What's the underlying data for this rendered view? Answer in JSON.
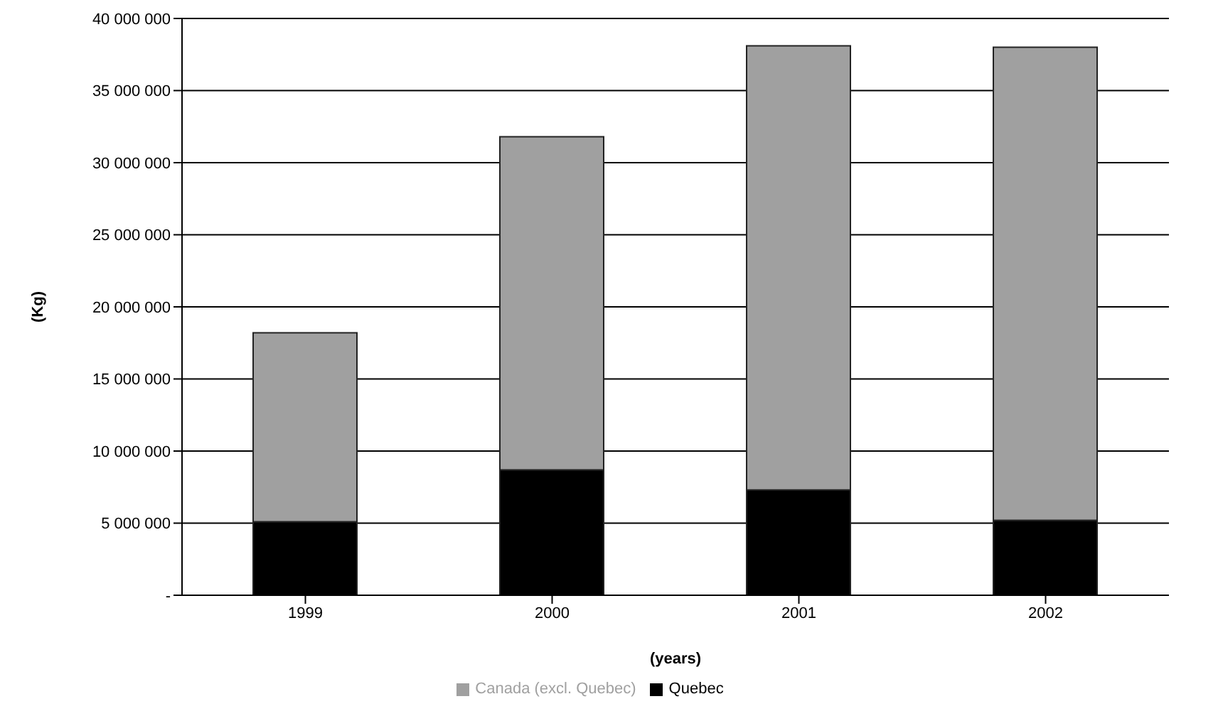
{
  "chart_data": {
    "type": "bar",
    "stacked": true,
    "xlabel": "(years)",
    "ylabel": "(Kg)",
    "categories": [
      "1999",
      "2000",
      "2001",
      "2002"
    ],
    "series": [
      {
        "name": "Quebec",
        "color": "#000000",
        "values": [
          5100000,
          8700000,
          7300000,
          5200000
        ]
      },
      {
        "name": "Canada (excl. Quebec)",
        "color": "#a0a0a0",
        "values": [
          13100000,
          23100000,
          30800000,
          32800000
        ]
      }
    ],
    "ylim": [
      0,
      40000000
    ],
    "yticks": [
      {
        "value": 0,
        "label": "-"
      },
      {
        "value": 5000000,
        "label": "5 000 000"
      },
      {
        "value": 10000000,
        "label": "10 000 000"
      },
      {
        "value": 15000000,
        "label": "15 000 000"
      },
      {
        "value": 20000000,
        "label": "20 000 000"
      },
      {
        "value": 25000000,
        "label": "25 000 000"
      },
      {
        "value": 30000000,
        "label": "30 000 000"
      },
      {
        "value": 35000000,
        "label": "35 000 000"
      },
      {
        "value": 40000000,
        "label": "40 000 000"
      }
    ],
    "grid": "y",
    "legend": "bottom"
  }
}
